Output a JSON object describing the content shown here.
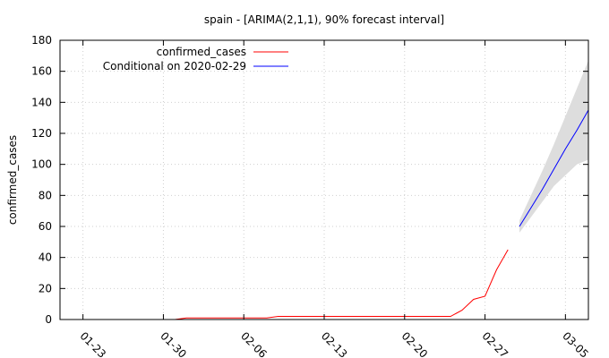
{
  "chart_data": {
    "type": "line",
    "title": "spain -  [ARIMA(2,1,1), 90% forecast interval]",
    "ylabel": "confirmed_cases",
    "xlabel": "",
    "ylim": [
      0,
      180
    ],
    "yticks": [
      0,
      20,
      40,
      60,
      80,
      100,
      120,
      140,
      160,
      180
    ],
    "xlim": [
      "2020-01-21",
      "2020-03-07"
    ],
    "xticks": [
      {
        "label": "01-23",
        "date": "2020-01-23"
      },
      {
        "label": "01-30",
        "date": "2020-01-30"
      },
      {
        "label": "02-06",
        "date": "2020-02-06"
      },
      {
        "label": "02-13",
        "date": "2020-02-13"
      },
      {
        "label": "02-20",
        "date": "2020-02-20"
      },
      {
        "label": "02-27",
        "date": "2020-02-27"
      },
      {
        "label": "03-05",
        "date": "2020-03-05"
      }
    ],
    "grid": true,
    "legend_position": "top-left",
    "series": [
      {
        "name": "confirmed_cases",
        "color": "#ff0000",
        "points": [
          [
            "2020-01-31",
            0
          ],
          [
            "2020-02-01",
            1
          ],
          [
            "2020-02-02",
            1
          ],
          [
            "2020-02-03",
            1
          ],
          [
            "2020-02-04",
            1
          ],
          [
            "2020-02-05",
            1
          ],
          [
            "2020-02-06",
            1
          ],
          [
            "2020-02-07",
            1
          ],
          [
            "2020-02-08",
            1
          ],
          [
            "2020-02-09",
            2
          ],
          [
            "2020-02-10",
            2
          ],
          [
            "2020-02-11",
            2
          ],
          [
            "2020-02-12",
            2
          ],
          [
            "2020-02-13",
            2
          ],
          [
            "2020-02-14",
            2
          ],
          [
            "2020-02-15",
            2
          ],
          [
            "2020-02-16",
            2
          ],
          [
            "2020-02-17",
            2
          ],
          [
            "2020-02-18",
            2
          ],
          [
            "2020-02-19",
            2
          ],
          [
            "2020-02-20",
            2
          ],
          [
            "2020-02-21",
            2
          ],
          [
            "2020-02-22",
            2
          ],
          [
            "2020-02-23",
            2
          ],
          [
            "2020-02-24",
            2
          ],
          [
            "2020-02-25",
            6
          ],
          [
            "2020-02-26",
            13
          ],
          [
            "2020-02-27",
            15
          ],
          [
            "2020-02-28",
            32
          ],
          [
            "2020-02-29",
            45
          ]
        ]
      },
      {
        "name": "Conditional on 2020-02-29",
        "color": "#0000ff",
        "points": [
          [
            "2020-03-01",
            60
          ],
          [
            "2020-03-02",
            72
          ],
          [
            "2020-03-03",
            84
          ],
          [
            "2020-03-04",
            97
          ],
          [
            "2020-03-05",
            110
          ],
          [
            "2020-03-06",
            122
          ],
          [
            "2020-03-07",
            135
          ]
        ],
        "interval": {
          "level": "90%",
          "fill": "#dddddd",
          "lower": [
            56,
            66,
            76,
            86,
            93,
            100,
            103
          ],
          "upper": [
            64,
            80,
            96,
            113,
            131,
            149,
            167
          ]
        }
      }
    ]
  }
}
